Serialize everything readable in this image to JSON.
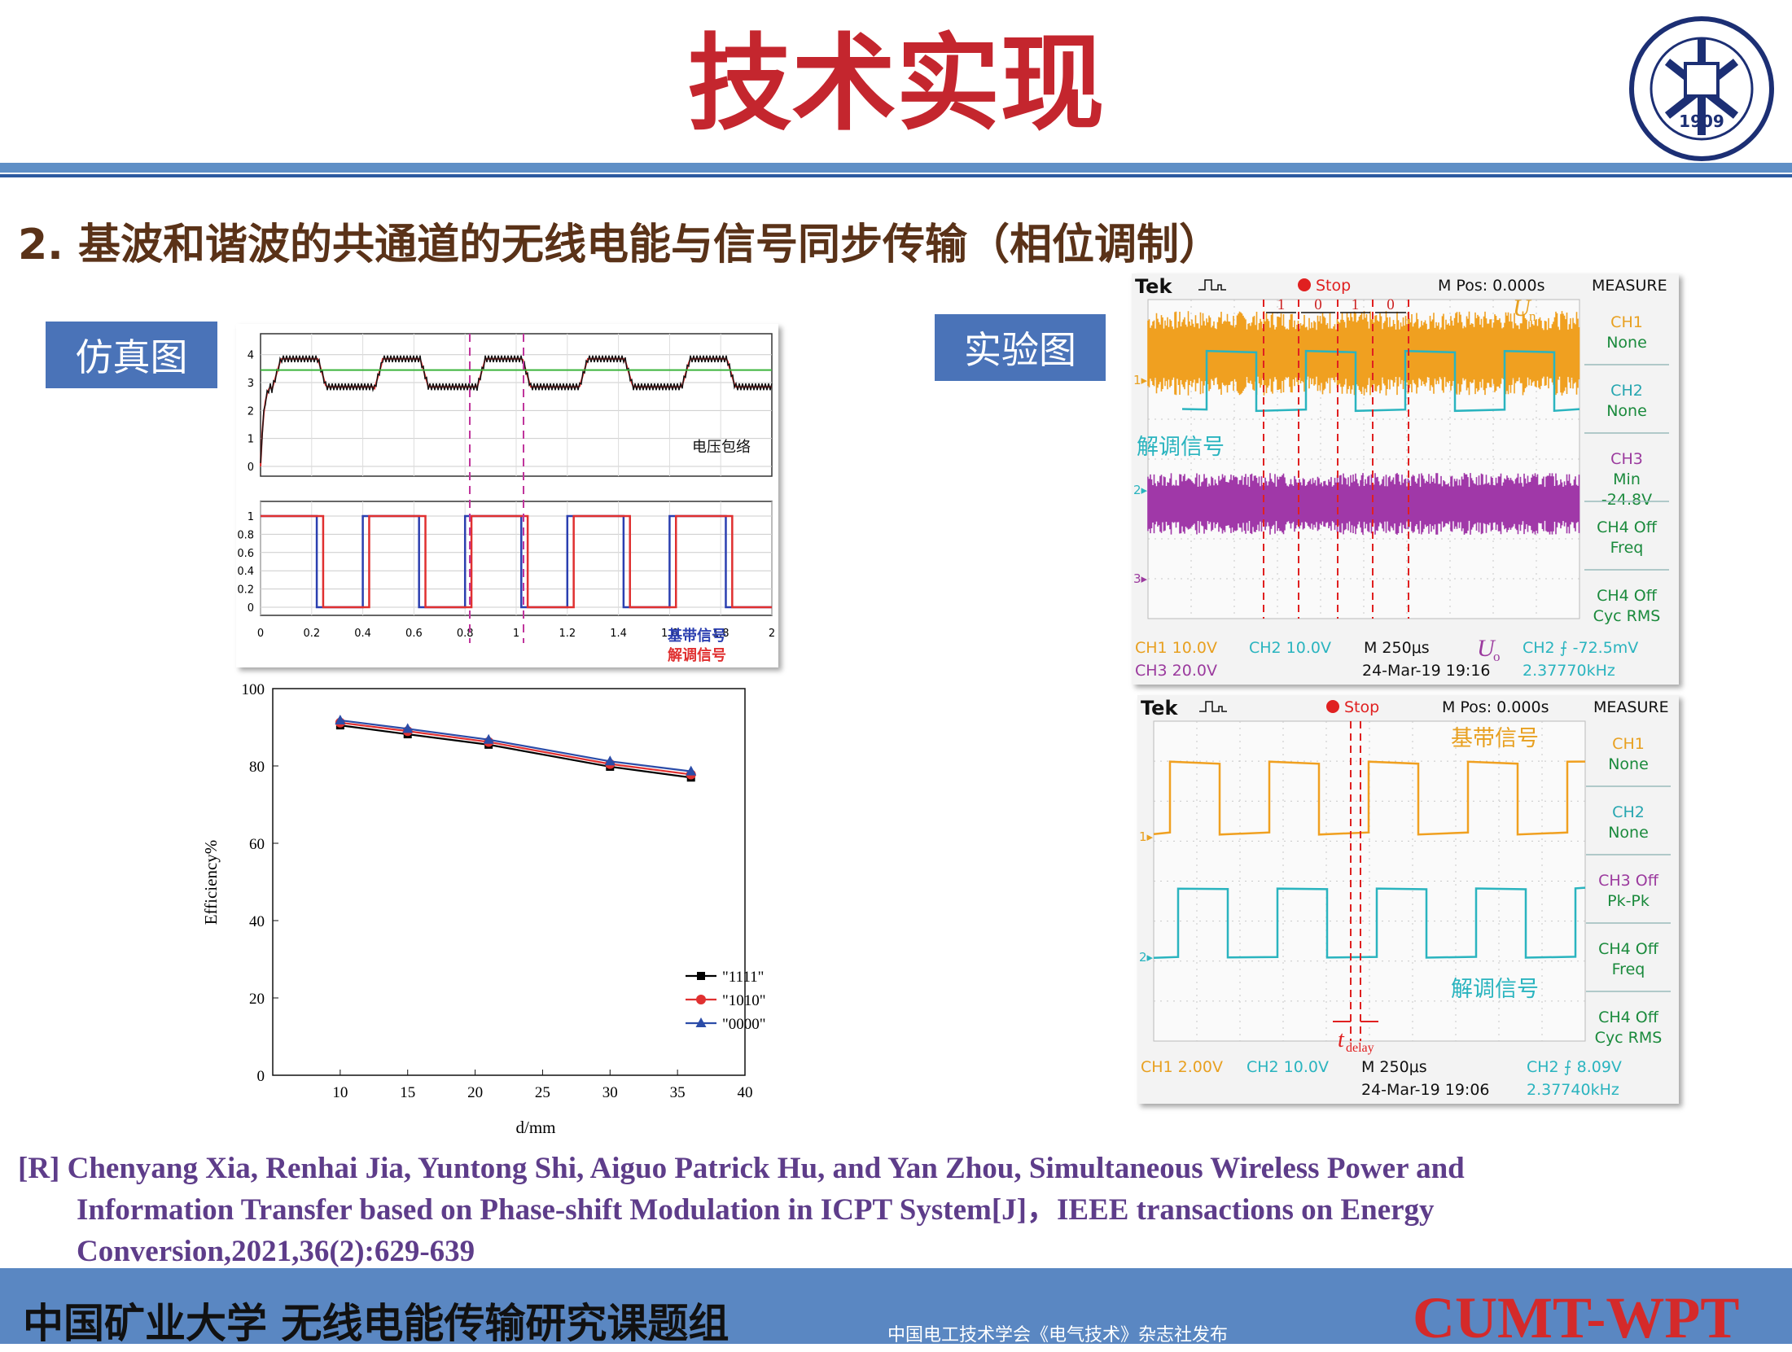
{
  "slide": {
    "title": "技术实现",
    "subtitle": "2. 基波和谐波的共通道的无线电能与信号同步传输（相位调制）",
    "tags": {
      "simulation": "仿真图",
      "experiment": "实验图"
    }
  },
  "logo": {
    "text": "1909",
    "icon": "university-seal"
  },
  "sim_plot_top": {
    "y_ticks": [
      "4",
      "3",
      "2",
      "1",
      "0"
    ],
    "label": "电压包络"
  },
  "sim_plot_bottom": {
    "y_ticks": [
      "1",
      "0.8",
      "0.6",
      "0.4",
      "0.2",
      "0"
    ],
    "x_ticks": [
      "0",
      "0.2",
      "0.4",
      "0.6",
      "0.8",
      "1",
      "1.2",
      "1.4",
      "1.6",
      "1.8",
      "2"
    ],
    "legend": [
      "基带信号",
      "解调信号"
    ]
  },
  "chart_data": {
    "type": "line",
    "xlabel": "d/mm",
    "ylabel": "Efficiency%",
    "xlim": [
      5,
      40
    ],
    "ylim": [
      0,
      100
    ],
    "x_ticks": [
      10,
      15,
      20,
      25,
      30,
      35,
      40
    ],
    "y_ticks": [
      0,
      20,
      40,
      60,
      80,
      100
    ],
    "x": [
      10,
      15,
      21,
      30,
      36
    ],
    "series": [
      {
        "name": "\"1111\"",
        "values": [
          90.5,
          88.2,
          85.5,
          79.8,
          77.0
        ],
        "color": "#000000",
        "marker": "square"
      },
      {
        "name": "\"1010\"",
        "values": [
          91.2,
          89.0,
          86.2,
          80.5,
          77.8
        ],
        "color": "#e03030",
        "marker": "circle"
      },
      {
        "name": "\"0000\"",
        "values": [
          91.8,
          89.6,
          86.8,
          81.2,
          78.6
        ],
        "color": "#2b4ca8",
        "marker": "triangle"
      }
    ],
    "legend_position": "bottom-right",
    "grid": false
  },
  "scope1": {
    "brand": "Tek",
    "status": "Stop",
    "mpos": "M Pos: 0.000s",
    "menu": "MEASURE",
    "side": [
      [
        "CH1",
        "None"
      ],
      [
        "CH2",
        "None"
      ],
      [
        "CH3",
        "Min",
        "-24.8V"
      ],
      [
        "CH4 Off",
        "Freq"
      ],
      [
        "CH4 Off",
        "Cyc RMS"
      ]
    ],
    "bits": [
      "1",
      "0",
      "1",
      "0"
    ],
    "un_label": "U",
    "un_sub": "n",
    "uo_label": "U",
    "uo_sub": "o",
    "demod_label": "解调信号",
    "markers": [
      "1",
      "2",
      "3"
    ],
    "bottom": {
      "ch1": "CH1  10.0V",
      "ch2": "CH2  10.0V",
      "ch3": "CH3  20.0V",
      "time": "M 250μs",
      "date": "24-Mar-19 19:16",
      "trig": "CH2 ⨍ -72.5mV",
      "freq": "2.37770kHz"
    }
  },
  "scope2": {
    "brand": "Tek",
    "status": "Stop",
    "mpos": "M Pos: 0.000s",
    "menu": "MEASURE",
    "side": [
      [
        "CH1",
        "None"
      ],
      [
        "CH2",
        "None"
      ],
      [
        "CH3 Off",
        "Pk-Pk"
      ],
      [
        "CH4 Off",
        "Freq"
      ],
      [
        "CH4 Off",
        "Cyc RMS"
      ]
    ],
    "base_label": "基带信号",
    "demod_label": "解调信号",
    "delay_label": "t",
    "delay_sub": "delay",
    "markers": [
      "1",
      "2"
    ],
    "bottom": {
      "ch1": "CH1  2.00V",
      "ch2": "CH2  10.0V",
      "time": "M 250μs",
      "date": "24-Mar-19 19:06",
      "trig": "CH2 ⨍ 8.09V",
      "freq": "2.37740kHz"
    }
  },
  "reference": {
    "line1": "[R] Chenyang Xia, Renhai Jia, Yuntong Shi, Aiguo Patrick Hu, and Yan Zhou, Simultaneous Wireless Power and",
    "line2": "Information Transfer based on Phase-shift Modulation in ICPT System[J]，IEEE transactions on Energy",
    "line3": "Conversion,2021,36(2):629-639"
  },
  "footer": {
    "org": "中国矿业大学   无线电能传输研究课题组",
    "publisher": "中国电工技术学会《电气技术》杂志社发布",
    "brand": "CUMT-WPT"
  }
}
